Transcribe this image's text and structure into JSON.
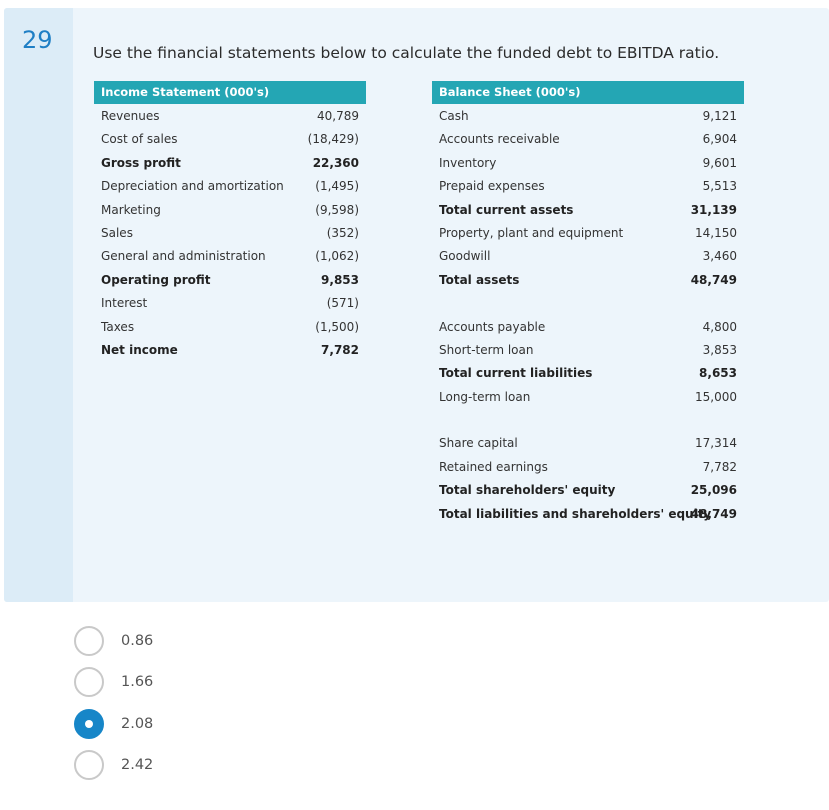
{
  "question": {
    "number": "29",
    "text": "Use the financial statements below to calculate the funded debt to EBITDA ratio."
  },
  "income_statement": {
    "title": "Income Statement (000's)",
    "rows": [
      {
        "label": "Revenues",
        "value": "40,789",
        "bold": false
      },
      {
        "label": "Cost of sales",
        "value": "(18,429)",
        "bold": false
      },
      {
        "label": "Gross profit",
        "value": "22,360",
        "bold": true
      },
      {
        "label": "Depreciation and amortization",
        "value": "(1,495)",
        "bold": false
      },
      {
        "label": "Marketing",
        "value": "(9,598)",
        "bold": false
      },
      {
        "label": "Sales",
        "value": "(352)",
        "bold": false
      },
      {
        "label": "General and administration",
        "value": "(1,062)",
        "bold": false
      },
      {
        "label": "Operating profit",
        "value": "9,853",
        "bold": true
      },
      {
        "label": "Interest",
        "value": "(571)",
        "bold": false
      },
      {
        "label": "Taxes",
        "value": "(1,500)",
        "bold": false
      },
      {
        "label": "Net income",
        "value": "7,782",
        "bold": true
      }
    ]
  },
  "balance_sheet": {
    "title": "Balance Sheet (000's)",
    "rows": [
      {
        "label": "Cash",
        "value": "9,121",
        "bold": false
      },
      {
        "label": "Accounts receivable",
        "value": "6,904",
        "bold": false
      },
      {
        "label": "Inventory",
        "value": "9,601",
        "bold": false
      },
      {
        "label": "Prepaid expenses",
        "value": "5,513",
        "bold": false
      },
      {
        "label": "Total current assets",
        "value": "31,139",
        "bold": true
      },
      {
        "label": "Property, plant and equipment",
        "value": "14,150",
        "bold": false
      },
      {
        "label": "Goodwill",
        "value": "3,460",
        "bold": false
      },
      {
        "label": "Total assets",
        "value": "48,749",
        "bold": true
      },
      {
        "label": "",
        "value": "",
        "bold": false,
        "spacer": true
      },
      {
        "label": "Accounts payable",
        "value": "4,800",
        "bold": false
      },
      {
        "label": "Short-term loan",
        "value": "3,853",
        "bold": false
      },
      {
        "label": "Total current liabilities",
        "value": "8,653",
        "bold": true
      },
      {
        "label": "Long-term loan",
        "value": "15,000",
        "bold": false
      },
      {
        "label": "",
        "value": "",
        "bold": false,
        "spacer": true
      },
      {
        "label": "Share capital",
        "value": "17,314",
        "bold": false
      },
      {
        "label": "Retained earnings",
        "value": "7,782",
        "bold": false
      },
      {
        "label": "Total shareholders' equity",
        "value": "25,096",
        "bold": true
      },
      {
        "label": "Total liabilities and shareholders' equity",
        "value": "48,749",
        "bold": true
      }
    ]
  },
  "options": [
    {
      "label": "0.86",
      "selected": false
    },
    {
      "label": "1.66",
      "selected": false
    },
    {
      "label": "2.08",
      "selected": true
    },
    {
      "label": "2.42",
      "selected": false
    }
  ],
  "colors": {
    "accent": "#1786c8",
    "table_header": "#24a6b4",
    "card_background": "#edf5fb",
    "number_strip": "#dcecf7"
  }
}
